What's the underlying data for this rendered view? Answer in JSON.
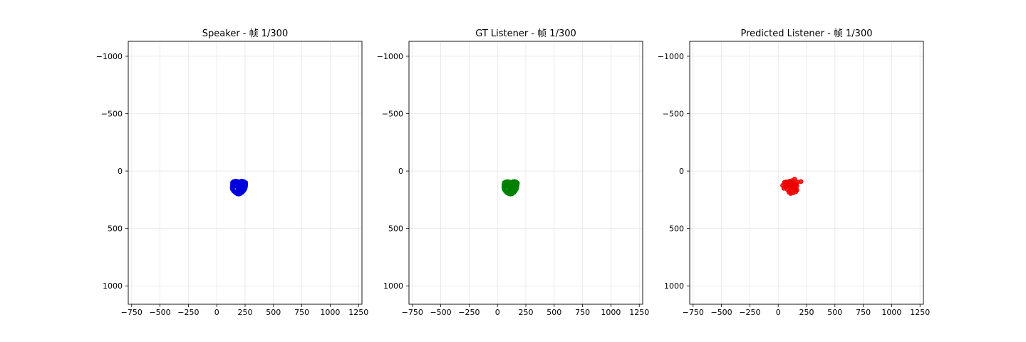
{
  "chart_data": [
    {
      "type": "scatter",
      "title": "Speaker - 帧 1/300",
      "xlim": [
        -780,
        1280
      ],
      "ylim_inverted": [
        1160,
        -1130
      ],
      "xticks": [
        -750,
        -500,
        -250,
        0,
        250,
        500,
        750,
        1000,
        1250
      ],
      "yticks": [
        -1000,
        -500,
        0,
        500,
        1000
      ],
      "grid": true,
      "color": "#0000dd",
      "series": [
        {
          "points": [
            [
              140,
              100
            ],
            [
              150,
              92
            ],
            [
              165,
              88
            ],
            [
              180,
              90
            ],
            [
              190,
              98
            ],
            [
              200,
              98
            ],
            [
              212,
              90
            ],
            [
              225,
              88
            ],
            [
              240,
              93
            ],
            [
              255,
              102
            ],
            [
              140,
              115
            ],
            [
              138,
              130
            ],
            [
              137,
              145
            ],
            [
              140,
              160
            ],
            [
              150,
              175
            ],
            [
              165,
              188
            ],
            [
              180,
              197
            ],
            [
              195,
              200
            ],
            [
              210,
              195
            ],
            [
              225,
              185
            ],
            [
              238,
              170
            ],
            [
              248,
              155
            ],
            [
              252,
              140
            ],
            [
              254,
              125
            ],
            [
              255,
              112
            ],
            [
              165,
              125
            ],
            [
              175,
              122
            ],
            [
              185,
              128
            ],
            [
              178,
              133
            ],
            [
              168,
              131
            ],
            [
              212,
              128
            ],
            [
              222,
              121
            ],
            [
              232,
              125
            ],
            [
              226,
              132
            ],
            [
              216,
              133
            ],
            [
              196,
              130
            ],
            [
              196,
              145
            ],
            [
              196,
              158
            ],
            [
              185,
              168
            ],
            [
              196,
              172
            ],
            [
              207,
              167
            ],
            [
              172,
              180
            ],
            [
              183,
              176
            ],
            [
              196,
              177
            ],
            [
              210,
              176
            ],
            [
              222,
              181
            ],
            [
              210,
              188
            ],
            [
              196,
              190
            ],
            [
              183,
              188
            ]
          ]
        }
      ]
    },
    {
      "type": "scatter",
      "title": "GT Listener - 帧 1/300",
      "xlim": [
        -780,
        1280
      ],
      "ylim_inverted": [
        1160,
        -1130
      ],
      "xticks": [
        -750,
        -500,
        -250,
        0,
        250,
        500,
        750,
        1000,
        1250
      ],
      "yticks": [
        -1000,
        -500,
        0,
        500,
        1000
      ],
      "grid": true,
      "color": "#008000",
      "series": [
        {
          "points": [
            [
              60,
              103
            ],
            [
              72,
              95
            ],
            [
              88,
              92
            ],
            [
              102,
              94
            ],
            [
              112,
              100
            ],
            [
              125,
              100
            ],
            [
              136,
              93
            ],
            [
              150,
              91
            ],
            [
              164,
              95
            ],
            [
              175,
              104
            ],
            [
              58,
              118
            ],
            [
              57,
              133
            ],
            [
              58,
              148
            ],
            [
              62,
              163
            ],
            [
              72,
              177
            ],
            [
              86,
              189
            ],
            [
              100,
              197
            ],
            [
              115,
              200
            ],
            [
              130,
              196
            ],
            [
              145,
              186
            ],
            [
              157,
              172
            ],
            [
              166,
              157
            ],
            [
              170,
              142
            ],
            [
              172,
              127
            ],
            [
              174,
              114
            ],
            [
              80,
              126
            ],
            [
              92,
              122
            ],
            [
              104,
              128
            ],
            [
              95,
              134
            ],
            [
              85,
              132
            ],
            [
              128,
              128
            ],
            [
              140,
              122
            ],
            [
              150,
              127
            ],
            [
              143,
              133
            ],
            [
              133,
              133
            ],
            [
              115,
              130
            ],
            [
              115,
              145
            ],
            [
              115,
              158
            ],
            [
              104,
              167
            ],
            [
              115,
              171
            ],
            [
              126,
              166
            ],
            [
              92,
              180
            ],
            [
              103,
              176
            ],
            [
              115,
              177
            ],
            [
              128,
              176
            ],
            [
              140,
              181
            ],
            [
              128,
              188
            ],
            [
              115,
              191
            ],
            [
              103,
              188
            ]
          ]
        }
      ]
    },
    {
      "type": "scatter",
      "title": "Predicted Listener - 帧 1/300",
      "xlim": [
        -780,
        1280
      ],
      "ylim_inverted": [
        1160,
        -1130
      ],
      "xticks": [
        -750,
        -500,
        -250,
        0,
        250,
        500,
        750,
        1000,
        1250
      ],
      "yticks": [
        -1000,
        -500,
        0,
        500,
        1000
      ],
      "grid": true,
      "color": "#ee0000",
      "series": [
        {
          "points": [
            [
              40,
              125
            ],
            [
              55,
              100
            ],
            [
              65,
              140
            ],
            [
              75,
              115
            ],
            [
              85,
              95
            ],
            [
              95,
              130
            ],
            [
              100,
              110
            ],
            [
              110,
              150
            ],
            [
              120,
              85
            ],
            [
              125,
              120
            ],
            [
              130,
              140
            ],
            [
              138,
              100
            ],
            [
              145,
              70
            ],
            [
              150,
              130
            ],
            [
              155,
              180
            ],
            [
              160,
              115
            ],
            [
              165,
              165
            ],
            [
              170,
              95
            ],
            [
              200,
              92
            ],
            [
              95,
              185
            ],
            [
              110,
              195
            ],
            [
              130,
              190
            ],
            [
              60,
              110
            ],
            [
              80,
              160
            ],
            [
              105,
              170
            ],
            [
              140,
              160
            ],
            [
              120,
              105
            ],
            [
              90,
              120
            ],
            [
              115,
              135
            ],
            [
              135,
              120
            ],
            [
              70,
              95
            ],
            [
              150,
              150
            ],
            [
              100,
              90
            ],
            [
              165,
              130
            ],
            [
              50,
              150
            ]
          ]
        }
      ]
    }
  ]
}
